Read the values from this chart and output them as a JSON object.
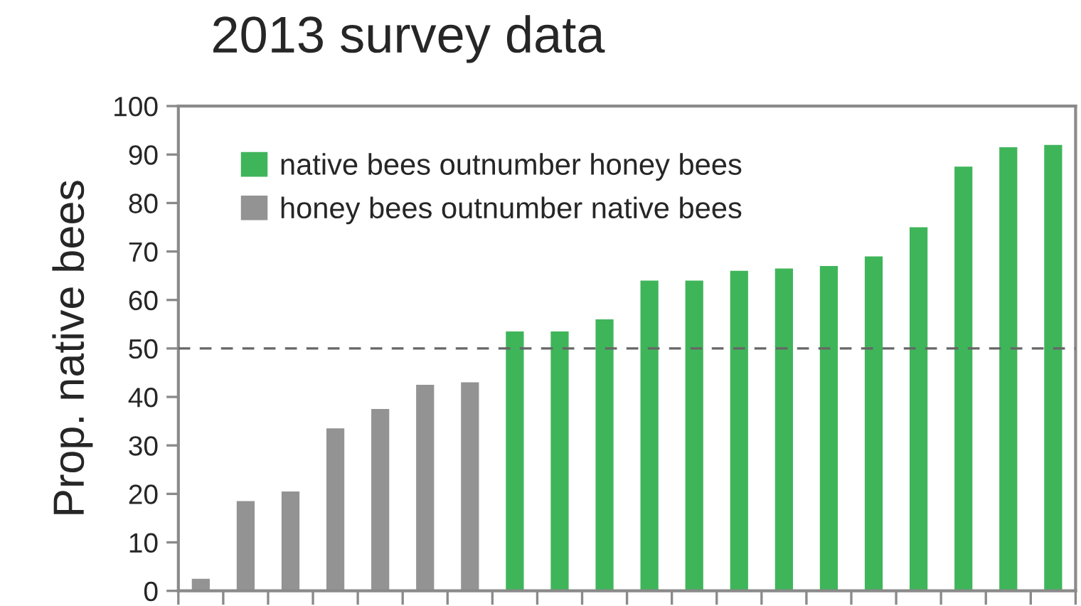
{
  "chart_data": {
    "type": "bar",
    "title": "2013 survey data",
    "ylabel": "Prop. native bees",
    "categories": [
      null,
      null,
      null,
      null,
      null,
      null,
      null,
      null,
      null,
      null,
      null,
      null,
      null,
      null,
      null,
      null,
      null,
      null,
      null,
      null
    ],
    "series": [
      {
        "name": "native bees outnumber honey bees",
        "color": "#3fb55a",
        "values": [
          null,
          null,
          null,
          null,
          null,
          null,
          null,
          53.5,
          53.5,
          56,
          64,
          64,
          66,
          66.5,
          67,
          69,
          75,
          87.5,
          91.5,
          92
        ]
      },
      {
        "name": "honey bees outnumber native bees",
        "color": "#939393",
        "values": [
          2.5,
          18.5,
          20.5,
          33.5,
          37.5,
          42.5,
          43,
          null,
          null,
          null,
          null,
          null,
          null,
          null,
          null,
          null,
          null,
          null,
          null,
          null
        ]
      }
    ],
    "ylim": [
      0,
      100
    ],
    "yticks": [
      0,
      10,
      20,
      30,
      40,
      50,
      60,
      70,
      80,
      90,
      100
    ],
    "ref_lines": [
      {
        "axis": "y",
        "value": 50,
        "color": "#666666",
        "line_style": "dashed"
      }
    ],
    "grid": false,
    "legend": "top left"
  }
}
